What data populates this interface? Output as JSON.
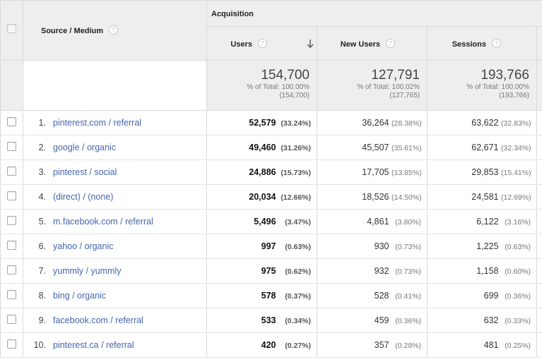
{
  "header": {
    "group_label": "Acquisition",
    "dimension_label": "Source / Medium",
    "columns": [
      {
        "key": "users",
        "label": "Users",
        "sorted": "descending"
      },
      {
        "key": "new_users",
        "label": "New Users"
      },
      {
        "key": "sessions",
        "label": "Sessions"
      }
    ],
    "help_glyph": "?"
  },
  "totals": {
    "users": {
      "value": "154,700",
      "pct": "% of Total: 100.00%",
      "base": "(154,700)"
    },
    "new_users": {
      "value": "127,791",
      "pct": "% of Total: 100.02%",
      "base": "(127,765)"
    },
    "sessions": {
      "value": "193,766",
      "pct": "% of Total: 100.00%",
      "base": "(193,766)"
    }
  },
  "rows": [
    {
      "index": "1.",
      "source": "pinterest.com / referral",
      "users": "52,579",
      "users_pct": "(33.24%)",
      "new_users": "36,264",
      "new_users_pct": "(28.38%)",
      "sessions": "63,622",
      "sessions_pct": "(32.83%)"
    },
    {
      "index": "2.",
      "source": "google / organic",
      "users": "49,460",
      "users_pct": "(31.26%)",
      "new_users": "45,507",
      "new_users_pct": "(35.61%)",
      "sessions": "62,671",
      "sessions_pct": "(32.34%)"
    },
    {
      "index": "3.",
      "source": "pinterest / social",
      "users": "24,886",
      "users_pct": "(15.73%)",
      "new_users": "17,705",
      "new_users_pct": "(13.85%)",
      "sessions": "29,853",
      "sessions_pct": "(15.41%)"
    },
    {
      "index": "4.",
      "source": "(direct) / (none)",
      "users": "20,034",
      "users_pct": "(12.66%)",
      "new_users": "18,526",
      "new_users_pct": "(14.50%)",
      "sessions": "24,581",
      "sessions_pct": "(12.69%)"
    },
    {
      "index": "5.",
      "source": "m.facebook.com / referral",
      "users": "5,496",
      "users_pct": "(3.47%)",
      "new_users": "4,861",
      "new_users_pct": "(3.80%)",
      "sessions": "6,122",
      "sessions_pct": "(3.16%)"
    },
    {
      "index": "6.",
      "source": "yahoo / organic",
      "users": "997",
      "users_pct": "(0.63%)",
      "new_users": "930",
      "new_users_pct": "(0.73%)",
      "sessions": "1,225",
      "sessions_pct": "(0.63%)"
    },
    {
      "index": "7.",
      "source": "yummly / yummly",
      "users": "975",
      "users_pct": "(0.62%)",
      "new_users": "932",
      "new_users_pct": "(0.73%)",
      "sessions": "1,158",
      "sessions_pct": "(0.60%)"
    },
    {
      "index": "8.",
      "source": "bing / organic",
      "users": "578",
      "users_pct": "(0.37%)",
      "new_users": "528",
      "new_users_pct": "(0.41%)",
      "sessions": "699",
      "sessions_pct": "(0.36%)"
    },
    {
      "index": "9.",
      "source": "facebook.com / referral",
      "users": "533",
      "users_pct": "(0.34%)",
      "new_users": "459",
      "new_users_pct": "(0.36%)",
      "sessions": "632",
      "sessions_pct": "(0.33%)"
    },
    {
      "index": "10.",
      "source": "pinterest.ca / referral",
      "users": "420",
      "users_pct": "(0.27%)",
      "new_users": "357",
      "new_users_pct": "(0.28%)",
      "sessions": "481",
      "sessions_pct": "(0.25%)"
    }
  ],
  "colors": {
    "link": "#4466b0",
    "header_bg": "#eeeeee",
    "border": "#dadada"
  },
  "icons": {
    "help": "question-circle-icon",
    "sort": "arrow-down-icon",
    "checkbox": "checkbox-icon"
  }
}
